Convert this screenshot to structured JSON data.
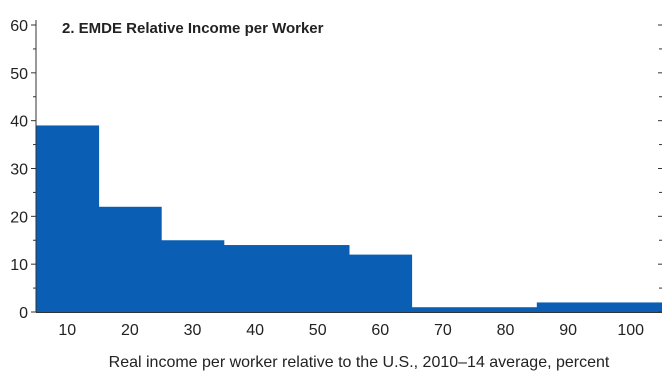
{
  "chart_data": {
    "type": "bar",
    "title": "2. EMDE Relative Income per Worker",
    "xlabel": "Real income per worker relative to the U.S., 2010–14 average, percent",
    "ylabel": "",
    "categories": [
      "10",
      "20",
      "30",
      "40",
      "50",
      "60",
      "70",
      "80",
      "90",
      "100"
    ],
    "values": [
      39,
      22,
      15,
      14,
      14,
      12,
      1,
      1,
      2,
      2
    ],
    "ylim": [
      0,
      60
    ],
    "yticks": [
      0,
      10,
      20,
      30,
      40,
      50,
      60
    ],
    "grid": false,
    "bar_color": "#0a5fb4"
  }
}
